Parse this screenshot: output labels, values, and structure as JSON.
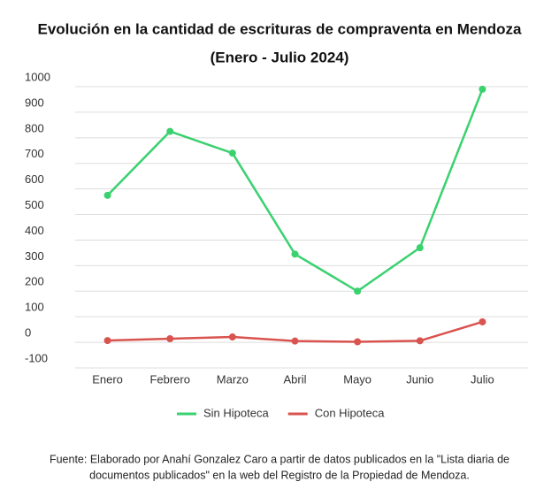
{
  "chart_data": {
    "type": "line",
    "title": [
      "Evolución en la cantidad de escrituras de compraventa en Mendoza",
      "(Enero - Julio 2024)"
    ],
    "categories": [
      "Enero",
      "Febrero",
      "Marzo",
      "Abril",
      "Mayo",
      "Junio",
      "Julio"
    ],
    "series": [
      {
        "name": "Sin Hipoteca",
        "color": "#3ad16f",
        "values": [
          575,
          825,
          740,
          345,
          200,
          370,
          990
        ]
      },
      {
        "name": "Con Hipoteca",
        "color": "#d9534f",
        "values": [
          7,
          14,
          21,
          5,
          2,
          6,
          80
        ]
      }
    ],
    "ylim": [
      -100,
      1000
    ],
    "yticks": [
      -100,
      0,
      100,
      200,
      300,
      400,
      500,
      600,
      700,
      800,
      900,
      1000
    ],
    "grid": true,
    "legend": "bottom",
    "source": [
      "Fuente: Elaborado por Anahí Gonzalez Caro a partir de datos publicados en la \"Lista diaria de",
      "documentos publicados\"  en la web del Registro de la Propiedad de Mendoza."
    ]
  }
}
